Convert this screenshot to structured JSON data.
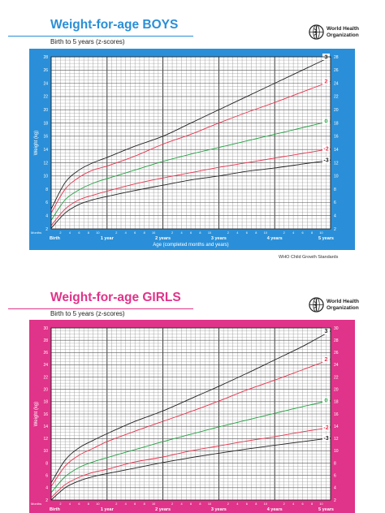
{
  "charts": [
    {
      "id": "boys",
      "title": "Weight-for-age BOYS",
      "subtitle": "Birth to 5 years (z-scores)",
      "organization": "World Health\nOrganization",
      "source": "WHO Child Growth Standards",
      "accent_color": "#2a8fd8"
    },
    {
      "id": "girls",
      "title": "Weight-for-age GIRLS",
      "subtitle": "Birth to 5 years (z-scores)",
      "organization": "World Health\nOrganization",
      "source": "",
      "accent_color": "#e0338a"
    }
  ],
  "chart_data": [
    {
      "type": "line",
      "title": "Weight-for-age BOYS",
      "subtitle": "Birth to 5 years (z-scores)",
      "xlabel": "Age (completed months and years)",
      "ylabel": "Weight (kg)",
      "x_unit_label": "Months",
      "xlim": [
        0,
        60
      ],
      "ylim": [
        2,
        28
      ],
      "grid": true,
      "y_ticks": [
        2,
        4,
        6,
        8,
        10,
        12,
        14,
        16,
        18,
        20,
        22,
        24,
        26,
        28
      ],
      "x_month_ticks": [
        2,
        4,
        6,
        8,
        10,
        2,
        4,
        6,
        8,
        10,
        2,
        4,
        6,
        8,
        10,
        2,
        4,
        6,
        8,
        10,
        2,
        4,
        6,
        8,
        10
      ],
      "x_year_labels": [
        {
          "x": 0,
          "label": "Birth"
        },
        {
          "x": 12,
          "label": "1 year"
        },
        {
          "x": 24,
          "label": "2 years"
        },
        {
          "x": 36,
          "label": "3 years"
        },
        {
          "x": 48,
          "label": "4 years"
        },
        {
          "x": 60,
          "label": "5 years"
        }
      ],
      "x": [
        0,
        3,
        6,
        9,
        12,
        18,
        24,
        30,
        36,
        42,
        48,
        54,
        60
      ],
      "series": [
        {
          "name": "3",
          "color": "#222222",
          "values": [
            5.0,
            9.0,
            10.9,
            12.0,
            12.8,
            14.5,
            16.0,
            18.0,
            20.0,
            22.0,
            24.0,
            26.0,
            28.0
          ]
        },
        {
          "name": "2",
          "color": "#e8334d",
          "values": [
            4.4,
            8.0,
            9.8,
            10.9,
            11.5,
            13.0,
            14.8,
            16.3,
            18.0,
            19.6,
            21.1,
            22.7,
            24.3
          ]
        },
        {
          "name": "0",
          "color": "#23a142",
          "values": [
            3.3,
            6.4,
            7.9,
            8.9,
            9.6,
            10.9,
            12.2,
            13.3,
            14.3,
            15.3,
            16.3,
            17.3,
            18.3
          ]
        },
        {
          "name": "-2",
          "color": "#e8334d",
          "values": [
            2.5,
            5.0,
            6.4,
            7.1,
            7.7,
            8.8,
            9.7,
            10.5,
            11.3,
            12.0,
            12.7,
            13.4,
            14.1
          ]
        },
        {
          "name": "-3",
          "color": "#222222",
          "values": [
            2.1,
            4.4,
            5.7,
            6.4,
            6.9,
            7.8,
            8.6,
            9.4,
            10.0,
            10.7,
            11.2,
            11.8,
            12.4
          ]
        }
      ]
    },
    {
      "type": "line",
      "title": "Weight-for-age GIRLS",
      "subtitle": "Birth to 5 years (z-scores)",
      "xlabel": "",
      "ylabel": "Weight (kg)",
      "x_unit_label": "Months",
      "xlim": [
        0,
        60
      ],
      "ylim": [
        2,
        30
      ],
      "grid": true,
      "y_ticks": [
        2,
        4,
        6,
        8,
        10,
        12,
        14,
        16,
        18,
        20,
        22,
        24,
        26,
        28,
        30
      ],
      "x_month_ticks": [
        2,
        4,
        6,
        8,
        10,
        2,
        4,
        6,
        8,
        10,
        2,
        4,
        6,
        8,
        10,
        2,
        4,
        6,
        8,
        10,
        2,
        4,
        6,
        8,
        10
      ],
      "x_year_labels": [
        {
          "x": 0,
          "label": "Birth"
        },
        {
          "x": 12,
          "label": "1 year"
        },
        {
          "x": 24,
          "label": "2 years"
        },
        {
          "x": 36,
          "label": "3 years"
        },
        {
          "x": 48,
          "label": "4 years"
        },
        {
          "x": 60,
          "label": "5 years"
        }
      ],
      "x": [
        0,
        3,
        6,
        9,
        12,
        18,
        24,
        30,
        36,
        42,
        48,
        54,
        60
      ],
      "series": [
        {
          "name": "3",
          "color": "#222222",
          "values": [
            4.8,
            8.5,
            10.5,
            11.7,
            12.8,
            14.8,
            16.5,
            18.5,
            20.5,
            22.6,
            24.8,
            27.0,
            29.5
          ]
        },
        {
          "name": "2",
          "color": "#e8334d",
          "values": [
            4.2,
            7.5,
            9.3,
            10.4,
            11.5,
            13.2,
            14.8,
            16.4,
            18.1,
            19.9,
            21.5,
            23.2,
            24.9
          ]
        },
        {
          "name": "0",
          "color": "#23a142",
          "values": [
            3.2,
            5.8,
            7.3,
            8.2,
            8.9,
            10.2,
            11.5,
            12.7,
            13.9,
            15.0,
            16.1,
            17.2,
            18.2
          ]
        },
        {
          "name": "-2",
          "color": "#e8334d",
          "values": [
            2.4,
            4.5,
            5.7,
            6.5,
            7.0,
            8.2,
            9.0,
            10.0,
            10.8,
            11.6,
            12.3,
            13.1,
            13.8
          ]
        },
        {
          "name": "-3",
          "color": "#222222",
          "values": [
            2.0,
            4.0,
            5.1,
            5.8,
            6.3,
            7.2,
            8.1,
            8.9,
            9.6,
            10.3,
            10.9,
            11.5,
            12.1
          ]
        }
      ]
    }
  ]
}
